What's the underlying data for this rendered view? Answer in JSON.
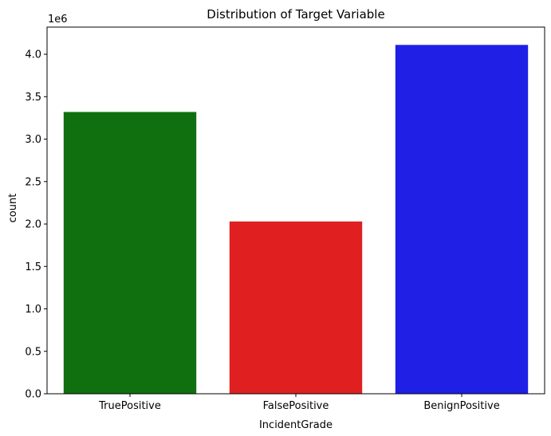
{
  "chart_data": {
    "type": "bar",
    "title": "Distribution of Target Variable",
    "xlabel": "IncidentGrade",
    "ylabel": "count",
    "y_offset_label": "1e6",
    "categories": [
      "TruePositive",
      "FalsePositive",
      "BenignPositive"
    ],
    "values": [
      3.32,
      2.03,
      4.11
    ],
    "colors": [
      "#107010",
      "#e02020",
      "#1f1fe6"
    ],
    "ylim": [
      0,
      4.32
    ],
    "yticks": [
      0.0,
      0.5,
      1.0,
      1.5,
      2.0,
      2.5,
      3.0,
      3.5,
      4.0
    ],
    "ytick_labels": [
      "0.0",
      "0.5",
      "1.0",
      "1.5",
      "2.0",
      "2.5",
      "3.0",
      "3.5",
      "4.0"
    ],
    "grid": false,
    "legend": "none"
  }
}
